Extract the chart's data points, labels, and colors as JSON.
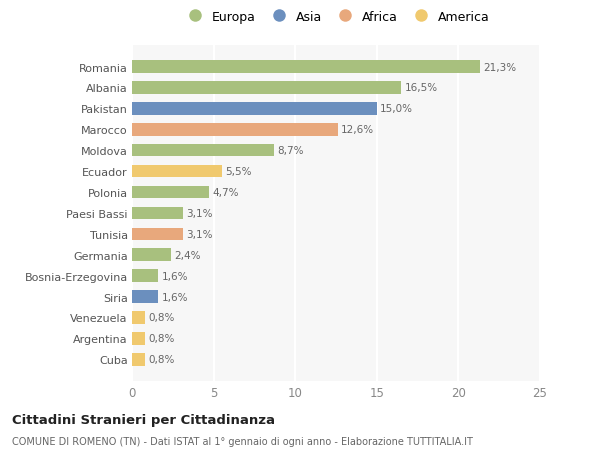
{
  "categories": [
    "Cuba",
    "Argentina",
    "Venezuela",
    "Siria",
    "Bosnia-Erzegovina",
    "Germania",
    "Tunisia",
    "Paesi Bassi",
    "Polonia",
    "Ecuador",
    "Moldova",
    "Marocco",
    "Pakistan",
    "Albania",
    "Romania"
  ],
  "values": [
    0.8,
    0.8,
    0.8,
    1.6,
    1.6,
    2.4,
    3.1,
    3.1,
    4.7,
    5.5,
    8.7,
    12.6,
    15.0,
    16.5,
    21.3
  ],
  "labels": [
    "0,8%",
    "0,8%",
    "0,8%",
    "1,6%",
    "1,6%",
    "2,4%",
    "3,1%",
    "3,1%",
    "4,7%",
    "5,5%",
    "8,7%",
    "12,6%",
    "15,0%",
    "16,5%",
    "21,3%"
  ],
  "colors": [
    "#f0c96e",
    "#f0c96e",
    "#f0c96e",
    "#6b8fbe",
    "#a8c07e",
    "#a8c07e",
    "#e8a87c",
    "#a8c07e",
    "#a8c07e",
    "#f0c96e",
    "#a8c07e",
    "#e8a87c",
    "#6b8fbe",
    "#a8c07e",
    "#a8c07e"
  ],
  "legend": [
    {
      "label": "Europa",
      "color": "#a8c07e"
    },
    {
      "label": "Asia",
      "color": "#6b8fbe"
    },
    {
      "label": "Africa",
      "color": "#e8a87c"
    },
    {
      "label": "America",
      "color": "#f0c96e"
    }
  ],
  "xlim": [
    0,
    25
  ],
  "xticks": [
    0,
    5,
    10,
    15,
    20,
    25
  ],
  "title1": "Cittadini Stranieri per Cittadinanza",
  "title2": "COMUNE DI ROMENO (TN) - Dati ISTAT al 1° gennaio di ogni anno - Elaborazione TUTTITALIA.IT",
  "background_color": "#ffffff",
  "bar_background": "#f7f7f7",
  "grid_color": "#ffffff",
  "label_color": "#666666",
  "ytick_color": "#555555"
}
